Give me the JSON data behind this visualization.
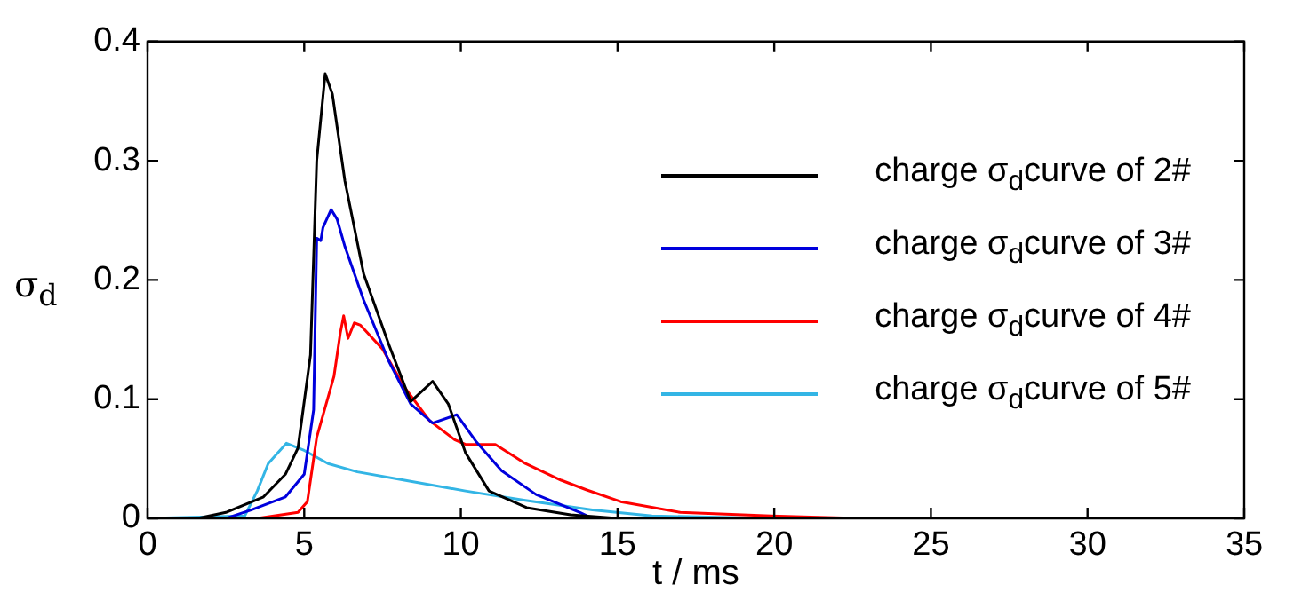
{
  "chart_data": {
    "type": "line",
    "xlabel": "t / ms",
    "ylabel": "σ$_{d}$",
    "xlim": [
      0,
      35
    ],
    "xticks": [
      0,
      5,
      10,
      15,
      20,
      25,
      30,
      35
    ],
    "ylim": [
      0,
      0.4
    ],
    "yticks": [
      0,
      0.1,
      0.2,
      0.3,
      0.4
    ],
    "grid": false,
    "legend": "right",
    "marker": "none",
    "line_style": "solid",
    "series": [
      {
        "name": "charge σ$_{d}$curve of 2#",
        "color": "#000000",
        "x": [
          0,
          1.6,
          2.5,
          3.7,
          4.4,
          4.8,
          5.2,
          5.4,
          5.67,
          5.9,
          6.3,
          6.9,
          7.7,
          8.4,
          9.1,
          9.6,
          10.15,
          10.9,
          12.1,
          13.5,
          15,
          32.7
        ],
        "values": [
          0,
          0,
          0.005,
          0.018,
          0.037,
          0.059,
          0.137,
          0.3,
          0.373,
          0.356,
          0.283,
          0.205,
          0.146,
          0.098,
          0.115,
          0.096,
          0.055,
          0.023,
          0.009,
          0.003,
          0,
          0
        ]
      },
      {
        "name": "charge σ$_{d}$curve of 3#",
        "color": "#0000dd",
        "x": [
          0,
          2.5,
          3.3,
          4.4,
          5.0,
          5.3,
          5.4,
          5.53,
          5.6,
          5.86,
          6.05,
          6.3,
          6.9,
          7.7,
          8.4,
          9.1,
          9.87,
          10.5,
          11.3,
          12.4,
          13.8,
          14.2,
          32.7
        ],
        "values": [
          0,
          0,
          0.007,
          0.018,
          0.037,
          0.091,
          0.235,
          0.233,
          0.244,
          0.259,
          0.251,
          0.228,
          0.183,
          0.132,
          0.096,
          0.08,
          0.087,
          0.064,
          0.04,
          0.02,
          0.005,
          0,
          0
        ]
      },
      {
        "name": "charge σ$_{d}$curve of 4#",
        "color": "#ff0000",
        "x": [
          0,
          3.5,
          4.8,
          5.1,
          5.4,
          5.95,
          6.15,
          6.26,
          6.4,
          6.6,
          6.8,
          7.5,
          8.2,
          9.0,
          9.8,
          10.15,
          11.1,
          12.06,
          13.2,
          14.0,
          15.1,
          17.0,
          19.9,
          22.7,
          32.7
        ],
        "values": [
          0,
          0,
          0.005,
          0.014,
          0.068,
          0.119,
          0.155,
          0.17,
          0.151,
          0.164,
          0.162,
          0.142,
          0.11,
          0.082,
          0.066,
          0.062,
          0.062,
          0.046,
          0.032,
          0.024,
          0.014,
          0.005,
          0.002,
          0,
          0
        ]
      },
      {
        "name": "charge σ$_{d}$curve of 5#",
        "color": "#33b5e5",
        "x": [
          0,
          3.1,
          3.5,
          3.85,
          4.43,
          5.0,
          5.76,
          6.7,
          8.2,
          10.15,
          12.06,
          14.2,
          16.1,
          20,
          32.7
        ],
        "values": [
          0,
          0.002,
          0.023,
          0.046,
          0.063,
          0.057,
          0.046,
          0.039,
          0.032,
          0.023,
          0.015,
          0.007,
          0.002,
          0,
          0
        ]
      }
    ]
  }
}
